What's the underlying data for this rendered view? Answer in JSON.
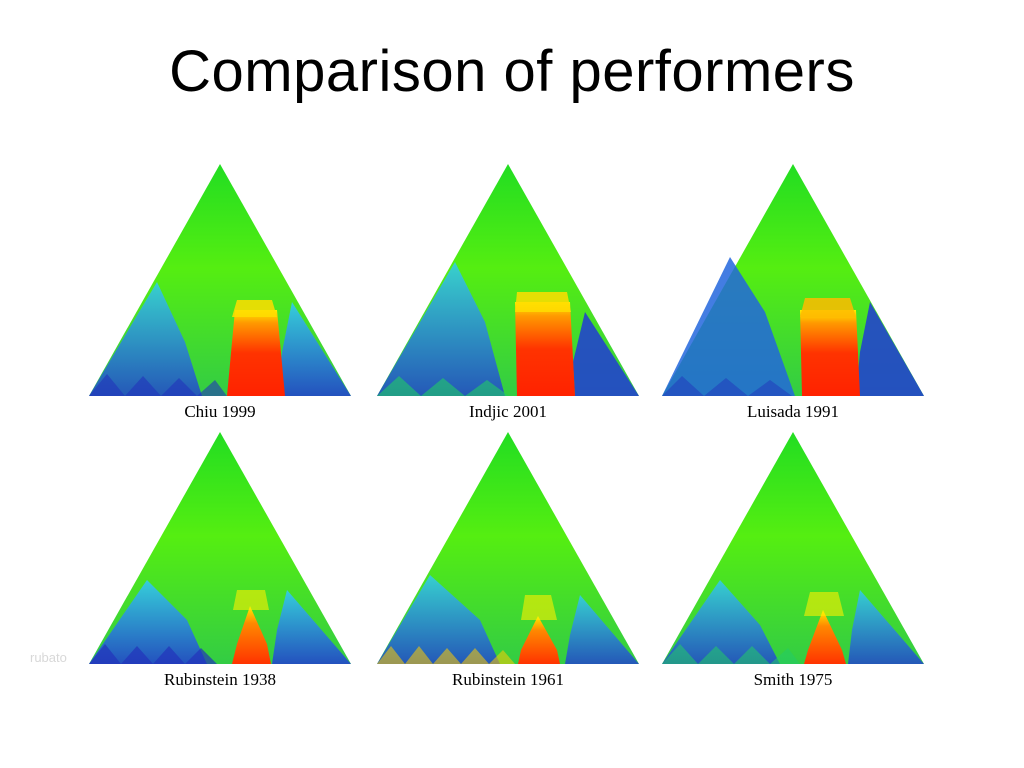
{
  "slide": {
    "title": "Comparison of performers",
    "side_label": "rubato"
  },
  "panels": [
    {
      "caption": "Chiu 1999"
    },
    {
      "caption": "Indjic 2001"
    },
    {
      "caption": "Luisada 1991"
    },
    {
      "caption": "Rubinstein 1938"
    },
    {
      "caption": "Rubinstein 1961"
    },
    {
      "caption": "Smith 1975"
    }
  ]
}
